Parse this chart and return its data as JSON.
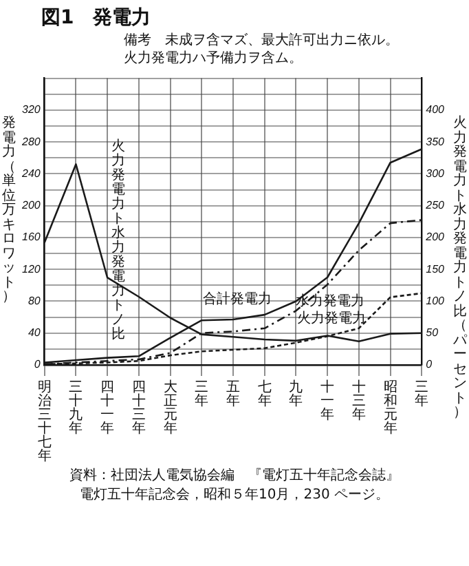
{
  "chart_data": {
    "type": "line",
    "title": "図1　発電力",
    "subtitle": "備考　未成ヲ含マズ、最大許可出力ニ依ル。火力発電力ハ予備力ヲ含ム。",
    "ylabel": "発電力（単位万キロワット）",
    "y2label": "火力発電力ト水力発電力トノ比（パーセント）",
    "categories": [
      "明治三十七年",
      "三十九年",
      "四十一年",
      "四十三年",
      "大正元年",
      "三年",
      "五年",
      "七年",
      "九年",
      "十一年",
      "十三年",
      "昭和元年",
      "三年"
    ],
    "series": [
      {
        "name": "合計発電力",
        "color": "#1a1a1a",
        "line_style": "solid",
        "values": [
          3,
          6,
          9,
          11,
          34,
          56,
          57,
          63,
          80,
          110,
          178,
          254,
          271
        ]
      },
      {
        "name": "水力発電力",
        "color": "#1a1a1a",
        "line_style": "dashed",
        "values": [
          1,
          3,
          5,
          7,
          15,
          40,
          42,
          46,
          68,
          101,
          144,
          178,
          182
        ]
      },
      {
        "name": "火力発電力",
        "color": "#1a1a1a",
        "line_style": "dotted",
        "values": [
          1,
          2,
          3,
          5,
          12,
          17,
          19,
          21,
          28,
          36,
          46,
          85,
          90
        ]
      },
      {
        "name": "火力発電力ト水力発電力トノ比",
        "color": "#1a1a1a",
        "line_style": "solid",
        "axis": "y2",
        "values": [
          192,
          315,
          137,
          107,
          74,
          48,
          44,
          40,
          38,
          46,
          37,
          49,
          50
        ]
      }
    ],
    "ylim": [
      0,
      360
    ],
    "yticks": [
      0,
      {
        "value": 20,
        "label": null
      },
      40,
      {
        "value": 60,
        "label": null
      },
      80,
      {
        "value": 100,
        "label": null
      },
      120,
      {
        "value": 140,
        "label": null
      },
      160,
      {
        "value": 180,
        "label": null
      },
      200,
      {
        "value": 220,
        "label": null
      },
      240,
      {
        "value": 260,
        "label": null
      },
      280,
      {
        "value": 300,
        "label": null
      },
      320,
      {
        "value": 340,
        "label": null
      },
      {
        "value": 360,
        "label": null
      }
    ],
    "y2lim": [
      0,
      450
    ],
    "y2ticks": [
      0,
      50,
      100,
      150,
      200,
      250,
      300,
      350,
      400
    ],
    "grid": true,
    "legend": false,
    "marker": "none",
    "annotations": [
      "資料：社団法人電気協会編　『電灯五十年記念会誌』",
      "電灯五十年記念会，昭和５年10月，230 ページ。"
    ]
  }
}
